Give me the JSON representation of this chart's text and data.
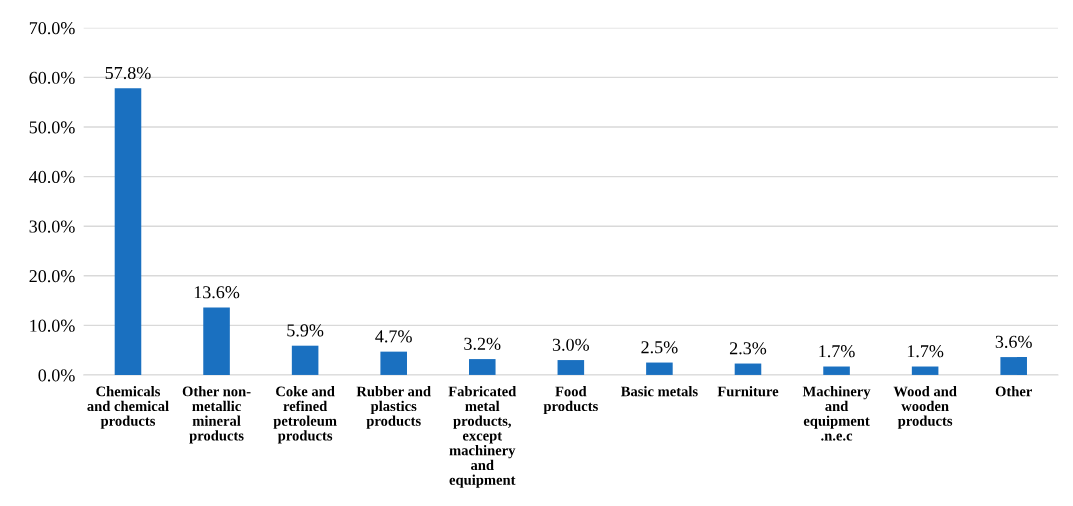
{
  "chart_data": {
    "type": "bar",
    "categories": [
      "Chemicals\nand chemical\nproducts",
      "Other non-\nmetallic\nmineral\nproducts",
      "Coke and\nrefined\npetroleum\nproducts",
      "Rubber and\nplastics\nproducts",
      "Fabricated\nmetal\nproducts,\nexcept\nmachinery\nand\nequipment",
      "Food\nproducts",
      "Basic metals",
      "Furniture",
      "Machinery\nand\nequipment\n.n.e.c",
      "Wood and\nwooden\nproducts",
      "Other"
    ],
    "values": [
      57.8,
      13.6,
      5.9,
      4.7,
      3.2,
      3.0,
      2.5,
      2.3,
      1.7,
      1.7,
      3.6
    ],
    "value_labels": [
      "57.8%",
      "13.6%",
      "5.9%",
      "4.7%",
      "3.2%",
      "3.0%",
      "2.5%",
      "2.3%",
      "1.7%",
      "1.7%",
      "3.6%"
    ],
    "color": "#1a70c0",
    "ylim": [
      0,
      70
    ],
    "yticks": [
      {
        "value": 0,
        "label": "0.0%"
      },
      {
        "value": 10,
        "label": "10.0%"
      },
      {
        "value": 20,
        "label": "20.0%"
      },
      {
        "value": 30,
        "label": "30.0%"
      },
      {
        "value": 40,
        "label": "40.0%"
      },
      {
        "value": 50,
        "label": "50.0%"
      },
      {
        "value": 60,
        "label": "60.0%"
      },
      {
        "value": 70,
        "label": "70.0%"
      }
    ],
    "grid": "y"
  }
}
